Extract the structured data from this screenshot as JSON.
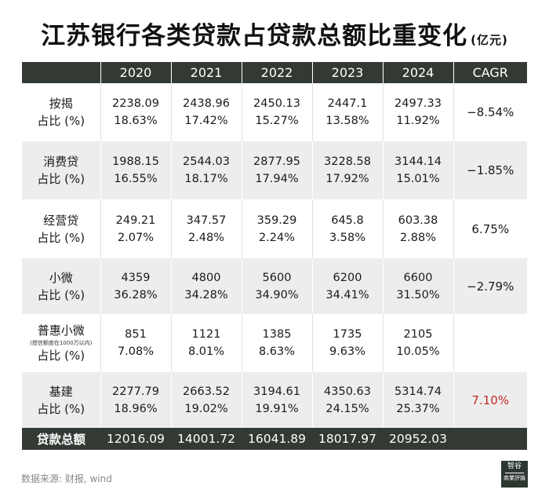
{
  "title": "江苏银行各类贷款占贷款总额比重变化",
  "unit": "(亿元)",
  "table": {
    "headers": [
      "2020",
      "2021",
      "2022",
      "2023",
      "2024",
      "CAGR"
    ],
    "rows": [
      {
        "name": "按揭",
        "note": "",
        "share_label": "占比 (%)",
        "values": [
          "2238.09",
          "2438.96",
          "2450.13",
          "2447.1",
          "2497.33"
        ],
        "shares": [
          "18.63%",
          "17.42%",
          "15.27%",
          "13.58%",
          "11.92%"
        ],
        "cagr": "−8.54%"
      },
      {
        "name": "消费贷",
        "note": "",
        "share_label": "占比 (%)",
        "values": [
          "1988.15",
          "2544.03",
          "2877.95",
          "3228.58",
          "3144.14"
        ],
        "shares": [
          "16.55%",
          "18.17%",
          "17.94%",
          "17.92%",
          "15.01%"
        ],
        "cagr": "−1.85%"
      },
      {
        "name": "经营贷",
        "note": "",
        "share_label": "占比 (%)",
        "values": [
          "249.21",
          "347.57",
          "359.29",
          "645.8",
          "603.38"
        ],
        "shares": [
          "2.07%",
          "2.48%",
          "2.24%",
          "3.58%",
          "2.88%"
        ],
        "cagr": "6.75%"
      },
      {
        "name": "小微",
        "note": "",
        "share_label": "占比 (%)",
        "values": [
          "4359",
          "4800",
          "5600",
          "6200",
          "6600"
        ],
        "shares": [
          "36.28%",
          "34.28%",
          "34.90%",
          "34.41%",
          "31.50%"
        ],
        "cagr": "−2.79%"
      },
      {
        "name": "普惠小微",
        "note": "(授信额度在1000万以内)",
        "share_label": "占比 (%)",
        "values": [
          "851",
          "1121",
          "1385",
          "1735",
          "2105"
        ],
        "shares": [
          "7.08%",
          "8.01%",
          "8.63%",
          "9.63%",
          "10.05%"
        ],
        "cagr": ""
      },
      {
        "name": "基建",
        "note": "",
        "share_label": "占比 (%)",
        "values": [
          "2277.79",
          "2663.52",
          "3194.61",
          "4350.63",
          "5314.74"
        ],
        "shares": [
          "18.96%",
          "19.02%",
          "19.91%",
          "24.15%",
          "25.37%"
        ],
        "cagr": "7.10%"
      }
    ],
    "total": {
      "label": "贷款总额",
      "values": [
        "12016.09",
        "14001.72",
        "16041.89",
        "18017.97",
        "20952.03"
      ]
    }
  },
  "footer": {
    "source": "数据来源: 财报, wind",
    "logo_top": "智谷",
    "logo_bottom": "商業評論"
  },
  "colors": {
    "header_bg": "#333a34",
    "band_bg": "#ededed",
    "highlight": "#c62828"
  }
}
